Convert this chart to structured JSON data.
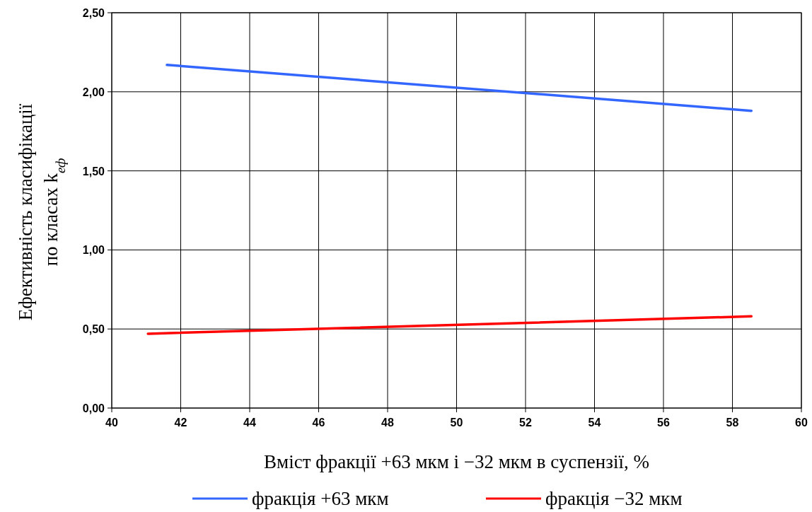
{
  "chart_data": {
    "type": "line",
    "xlabel": "Вміст фракції +63 мкм і −32 мкм в суспензії, %",
    "ylabel": "Ефективність класифікації по класах k$_{еф}$",
    "series": [
      {
        "name": "фракція +63 мкм",
        "color": "#3366ff",
        "x": [
          41.6,
          58.55
        ],
        "values": [
          2.17,
          1.88
        ]
      },
      {
        "name": "фракція −32 мкм",
        "color": "#ff0000",
        "x": [
          41.05,
          58.55
        ],
        "values": [
          0.47,
          0.58
        ]
      }
    ],
    "xlim": [
      40,
      60
    ],
    "xticks": [
      40,
      42,
      44,
      46,
      48,
      50,
      52,
      54,
      56,
      58,
      60
    ],
    "ylim": [
      0,
      2.5
    ],
    "yticks": [
      {
        "value": 0,
        "label": "0,00"
      },
      {
        "value": 0.5,
        "label": "0,50"
      },
      {
        "value": 1,
        "label": "1,00"
      },
      {
        "value": 1.5,
        "label": "1,50"
      },
      {
        "value": 2,
        "label": "2,00"
      },
      {
        "value": 2.5,
        "label": "2,50"
      }
    ],
    "grid": true,
    "legend": "bottom",
    "marker": "none",
    "line_style": "solid"
  }
}
